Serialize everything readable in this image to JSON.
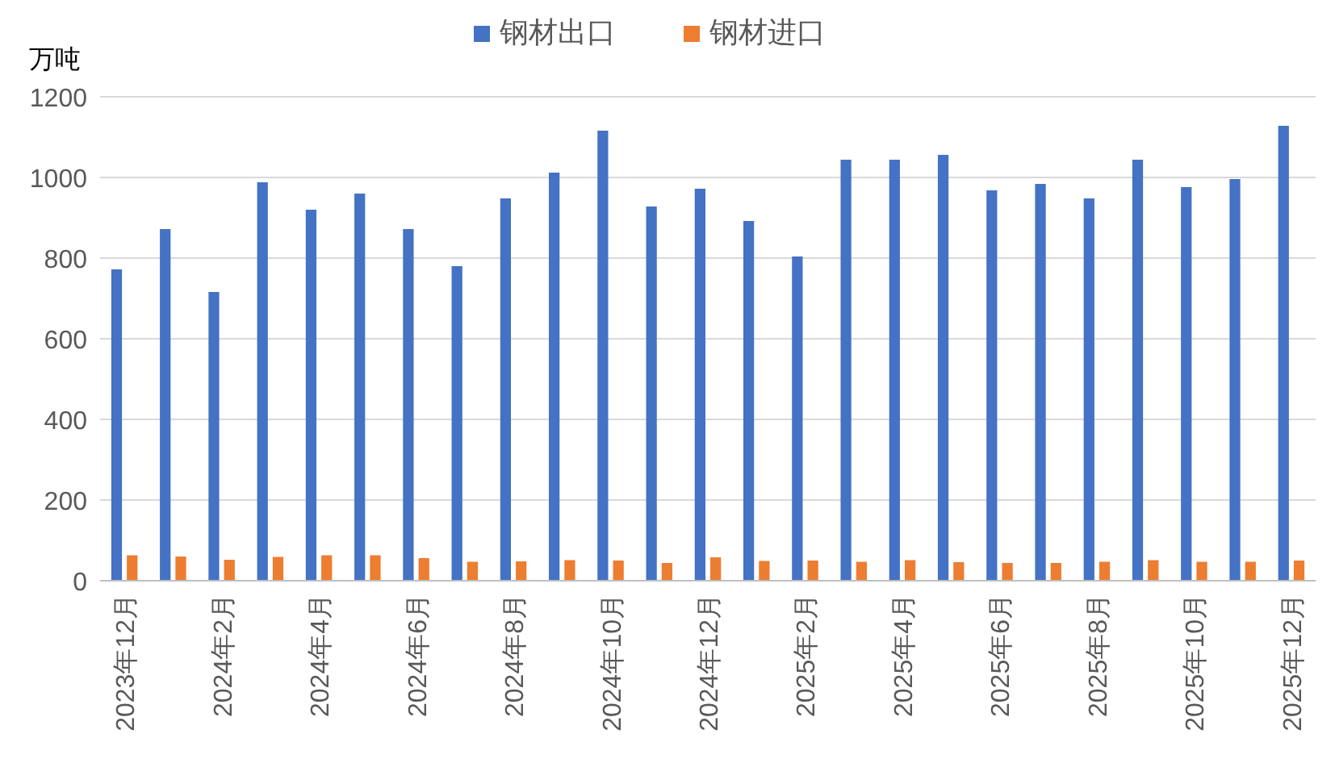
{
  "chart_data": {
    "type": "bar",
    "ylabel": "万吨",
    "categories": [
      "2023年12月",
      null,
      "2024年2月",
      null,
      "2024年4月",
      null,
      "2024年6月",
      null,
      "2024年8月",
      null,
      "2024年10月",
      null,
      "2024年12月",
      null,
      "2025年2月",
      null,
      "2025年4月",
      null,
      "2025年6月",
      null,
      "2025年8月",
      null,
      "2025年10月",
      null,
      "2025年12月"
    ],
    "series": [
      {
        "name": "钢材出口",
        "color": "#4472c4",
        "values": [
          772,
          872,
          716,
          988,
          920,
          960,
          872,
          780,
          948,
          1012,
          1116,
          928,
          972,
          892,
          804,
          1044,
          1044,
          1056,
          968,
          984,
          948,
          1044,
          976,
          996,
          1128
        ]
      },
      {
        "name": "钢材进口",
        "color": "#ed7d31",
        "values": [
          63,
          60,
          52,
          59,
          63,
          63,
          56,
          47,
          48,
          51,
          50,
          44,
          58,
          49,
          50,
          47,
          51,
          46,
          44,
          44,
          47,
          51,
          47,
          47,
          50
        ]
      }
    ],
    "ylim": [
      0,
      1200
    ],
    "yticks": [
      0,
      200,
      400,
      600,
      800,
      1000,
      1200
    ],
    "grid": "y",
    "legend": "top"
  }
}
